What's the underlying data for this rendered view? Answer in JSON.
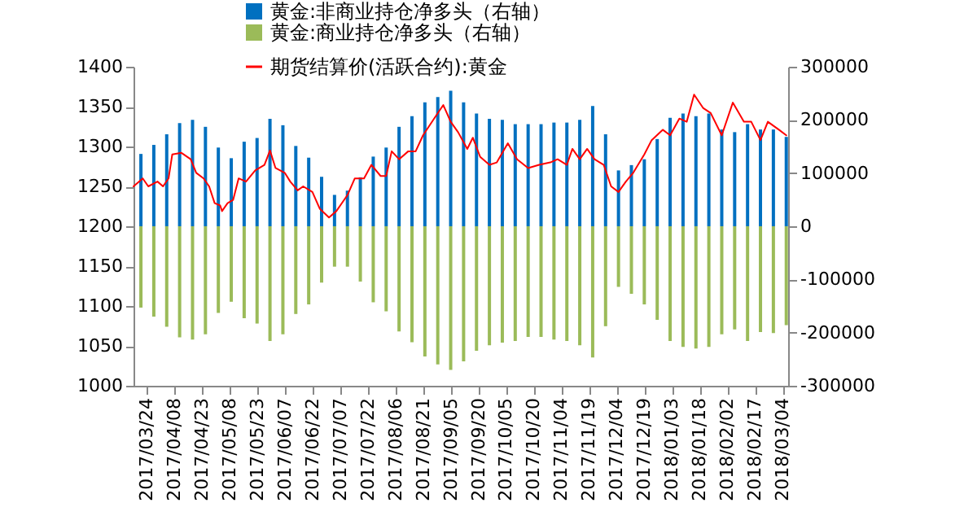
{
  "chart_data": {
    "type": "bar",
    "legend": "top",
    "marker": "none",
    "line_style": "solid",
    "grid": false,
    "xlim": [
      "2017-03-17",
      "2018-03-07"
    ],
    "xticks": [
      {
        "value": "2017-03-24",
        "label": "2017/03/24"
      },
      {
        "value": "2017-04-08",
        "label": "2017/04/08"
      },
      {
        "value": "2017-04-23",
        "label": "2017/04/23"
      },
      {
        "value": "2017-05-08",
        "label": "2017/05/08"
      },
      {
        "value": "2017-05-23",
        "label": "2017/05/23"
      },
      {
        "value": "2017-06-07",
        "label": "2017/06/07"
      },
      {
        "value": "2017-06-22",
        "label": "2017/06/22"
      },
      {
        "value": "2017-07-07",
        "label": "2017/07/07"
      },
      {
        "value": "2017-07-22",
        "label": "2017/07/22"
      },
      {
        "value": "2017-08-06",
        "label": "2017/08/06"
      },
      {
        "value": "2017-08-21",
        "label": "2017/08/21"
      },
      {
        "value": "2017-09-05",
        "label": "2017/09/05"
      },
      {
        "value": "2017-09-20",
        "label": "2017/09/20"
      },
      {
        "value": "2017-10-05",
        "label": "2017/10/05"
      },
      {
        "value": "2017-10-20",
        "label": "2017/10/20"
      },
      {
        "value": "2017-11-04",
        "label": "2017/11/04"
      },
      {
        "value": "2017-11-19",
        "label": "2017/11/19"
      },
      {
        "value": "2017-12-04",
        "label": "2017/12/04"
      },
      {
        "value": "2017-12-19",
        "label": "2017/12/19"
      },
      {
        "value": "2018-01-03",
        "label": "2018/01/03"
      },
      {
        "value": "2018-01-18",
        "label": "2018/01/18"
      },
      {
        "value": "2018-02-02",
        "label": "2018/02/02"
      },
      {
        "value": "2018-02-17",
        "label": "2018/02/17"
      },
      {
        "value": "2018-03-04",
        "label": "2018/03/04"
      }
    ],
    "ylim": [
      1000,
      1400
    ],
    "yticks": [
      1000,
      1050,
      1100,
      1150,
      1200,
      1250,
      1300,
      1350,
      1400
    ],
    "y2lim": [
      -300000,
      300000
    ],
    "y2ticks": [
      -300000,
      -200000,
      -100000,
      0,
      100000,
      200000,
      300000
    ],
    "series": [
      {
        "name": "黄金:非商业持仓净多头（右轴）",
        "type": "bar",
        "axis": "y2",
        "color": "#0070c0",
        "x": [
          "2017-03-21",
          "2017-03-28",
          "2017-04-04",
          "2017-04-11",
          "2017-04-18",
          "2017-04-25",
          "2017-05-02",
          "2017-05-09",
          "2017-05-16",
          "2017-05-23",
          "2017-05-30",
          "2017-06-06",
          "2017-06-13",
          "2017-06-20",
          "2017-06-27",
          "2017-07-04",
          "2017-07-11",
          "2017-07-18",
          "2017-07-25",
          "2017-08-01",
          "2017-08-08",
          "2017-08-15",
          "2017-08-22",
          "2017-08-29",
          "2017-09-05",
          "2017-09-12",
          "2017-09-19",
          "2017-09-26",
          "2017-10-03",
          "2017-10-10",
          "2017-10-17",
          "2017-10-24",
          "2017-10-31",
          "2017-11-07",
          "2017-11-14",
          "2017-11-21",
          "2017-11-28",
          "2017-12-05",
          "2017-12-12",
          "2017-12-19",
          "2017-12-26",
          "2018-01-02",
          "2018-01-09",
          "2018-01-16",
          "2018-01-23",
          "2018-01-30",
          "2018-02-06",
          "2018-02-13",
          "2018-02-20",
          "2018-02-27",
          "2018-03-06"
        ],
        "values": [
          136000,
          153000,
          173000,
          194000,
          200000,
          187000,
          148000,
          128000,
          159000,
          166000,
          202000,
          190000,
          151000,
          129000,
          93000,
          59000,
          67000,
          92000,
          131000,
          148000,
          187000,
          207000,
          233000,
          243000,
          255000,
          233000,
          212000,
          202000,
          200000,
          192000,
          192000,
          192000,
          195000,
          195000,
          200000,
          226000,
          173000,
          105000,
          115000,
          126000,
          164000,
          204000,
          212000,
          207000,
          212000,
          182000,
          177000,
          192000,
          182000,
          182000,
          168000
        ]
      },
      {
        "name": "黄金:商业持仓净多头（右轴）",
        "type": "bar",
        "axis": "y2",
        "color": "#9bbb59",
        "x": [
          "2017-03-21",
          "2017-03-28",
          "2017-04-04",
          "2017-04-11",
          "2017-04-18",
          "2017-04-25",
          "2017-05-02",
          "2017-05-09",
          "2017-05-16",
          "2017-05-23",
          "2017-05-30",
          "2017-06-06",
          "2017-06-13",
          "2017-06-20",
          "2017-06-27",
          "2017-07-04",
          "2017-07-11",
          "2017-07-18",
          "2017-07-25",
          "2017-08-01",
          "2017-08-08",
          "2017-08-15",
          "2017-08-22",
          "2017-08-29",
          "2017-09-05",
          "2017-09-12",
          "2017-09-19",
          "2017-09-26",
          "2017-10-03",
          "2017-10-10",
          "2017-10-17",
          "2017-10-24",
          "2017-10-31",
          "2017-11-07",
          "2017-11-14",
          "2017-11-21",
          "2017-11-28",
          "2017-12-05",
          "2017-12-12",
          "2017-12-19",
          "2017-12-26",
          "2018-01-02",
          "2018-01-09",
          "2018-01-16",
          "2018-01-23",
          "2018-01-30",
          "2018-02-06",
          "2018-02-13",
          "2018-02-20",
          "2018-02-27",
          "2018-03-06"
        ],
        "values": [
          -153000,
          -170000,
          -189000,
          -209000,
          -213000,
          -203000,
          -163000,
          -142000,
          -173000,
          -183000,
          -216000,
          -203000,
          -165000,
          -147000,
          -106000,
          -76000,
          -76000,
          -104000,
          -143000,
          -160000,
          -198000,
          -218000,
          -245000,
          -260000,
          -270000,
          -254000,
          -234000,
          -224000,
          -219000,
          -216000,
          -208000,
          -208000,
          -213000,
          -216000,
          -224000,
          -247000,
          -188000,
          -114000,
          -127000,
          -147000,
          -176000,
          -216000,
          -227000,
          -230000,
          -227000,
          -203000,
          -194000,
          -216000,
          -199000,
          -201000,
          -186000
        ]
      },
      {
        "name": "期货结算价(活跃合约):黄金",
        "type": "line",
        "color": "#ff0000",
        "x": [
          "2017-03-17",
          "2017-03-22",
          "2017-03-25",
          "2017-03-30",
          "2017-04-02",
          "2017-04-05",
          "2017-04-07",
          "2017-04-12",
          "2017-04-17",
          "2017-04-20",
          "2017-04-24",
          "2017-04-27",
          "2017-04-30",
          "2017-05-03",
          "2017-05-04",
          "2017-05-07",
          "2017-05-10",
          "2017-05-13",
          "2017-05-17",
          "2017-05-22",
          "2017-05-27",
          "2017-05-30",
          "2017-06-02",
          "2017-06-07",
          "2017-06-10",
          "2017-06-14",
          "2017-06-17",
          "2017-06-22",
          "2017-06-26",
          "2017-07-01",
          "2017-07-05",
          "2017-07-11",
          "2017-07-15",
          "2017-07-20",
          "2017-07-24",
          "2017-07-29",
          "2017-08-01",
          "2017-08-04",
          "2017-08-08",
          "2017-08-13",
          "2017-08-17",
          "2017-08-21",
          "2017-08-27",
          "2017-09-01",
          "2017-09-05",
          "2017-09-09",
          "2017-09-14",
          "2017-09-17",
          "2017-09-21",
          "2017-09-26",
          "2017-09-30",
          "2017-10-06",
          "2017-10-11",
          "2017-10-17",
          "2017-10-23",
          "2017-10-29",
          "2017-11-02",
          "2017-11-07",
          "2017-11-10",
          "2017-11-14",
          "2017-11-18",
          "2017-11-22",
          "2017-11-27",
          "2017-12-01",
          "2017-12-05",
          "2017-12-09",
          "2017-12-13",
          "2017-12-19",
          "2017-12-23",
          "2017-12-29",
          "2018-01-02",
          "2018-01-07",
          "2018-01-11",
          "2018-01-15",
          "2018-01-20",
          "2018-01-24",
          "2018-01-30",
          "2018-02-05",
          "2018-02-11",
          "2018-02-15",
          "2018-02-20",
          "2018-02-24",
          "2018-03-02",
          "2018-03-06"
        ],
        "values": [
          1250,
          1260,
          1250,
          1256,
          1250,
          1260,
          1290,
          1292,
          1284,
          1267,
          1260,
          1250,
          1229,
          1226,
          1219,
          1229,
          1233,
          1260,
          1256,
          1270,
          1277,
          1295,
          1273,
          1267,
          1256,
          1245,
          1250,
          1243,
          1222,
          1211,
          1219,
          1239,
          1260,
          1260,
          1277,
          1263,
          1263,
          1294,
          1284,
          1294,
          1294,
          1314,
          1335,
          1352,
          1331,
          1318,
          1297,
          1311,
          1287,
          1277,
          1280,
          1304,
          1284,
          1273,
          1277,
          1280,
          1284,
          1277,
          1297,
          1284,
          1297,
          1284,
          1277,
          1250,
          1243,
          1256,
          1267,
          1290,
          1308,
          1321,
          1314,
          1335,
          1331,
          1365,
          1348,
          1342,
          1314,
          1355,
          1331,
          1331,
          1308,
          1331,
          1321,
          1314
        ]
      }
    ]
  }
}
